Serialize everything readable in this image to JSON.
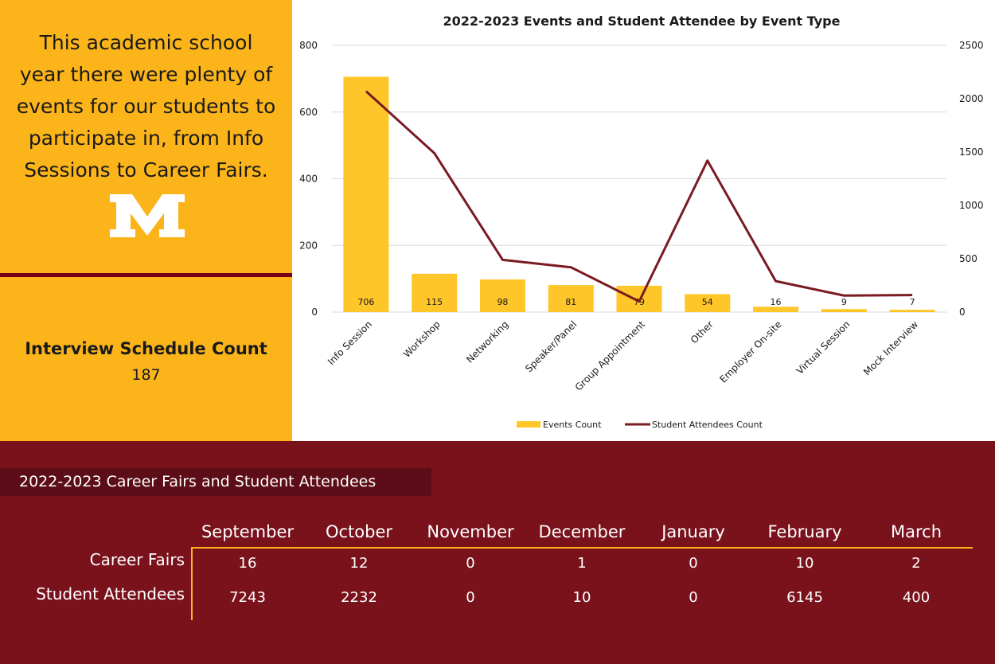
{
  "intro_text": [
    "This academic school",
    "year there were plenty of",
    "events for our students to",
    "participate in, from Info",
    "Sessions to Career Fairs."
  ],
  "logo_text": "M",
  "interview": {
    "title": "Interview Schedule Count",
    "value": "187"
  },
  "colors": {
    "gold": "#FBB51A",
    "maroon": "#7A0019",
    "bar": "#FFC629",
    "line": "#7A1A22",
    "bottom_bg": "#7A121C"
  },
  "chart_data": {
    "type": "bar",
    "title": "2022-2023 Events and Student Attendee by Event Type",
    "categories": [
      "Info Session",
      "Workshop",
      "Networking",
      "Speaker/Panel",
      "Group Appointment",
      "Other",
      "Employer On-site",
      "Virtual Session",
      "Mock Interview"
    ],
    "series": [
      {
        "name": "Events Count",
        "type": "bar",
        "axis": "left",
        "values": [
          706,
          115,
          98,
          81,
          79,
          54,
          16,
          9,
          7
        ]
      },
      {
        "name": "Student Attendees Count",
        "type": "line",
        "axis": "right",
        "values": [
          2070,
          1490,
          490,
          420,
          100,
          1420,
          290,
          155,
          160
        ]
      }
    ],
    "ylim_left": [
      0,
      800
    ],
    "yticks_left": [
      "0",
      "200",
      "400",
      "600",
      "800"
    ],
    "ylim_right": [
      0,
      2500
    ],
    "yticks_right": [
      "0",
      "500",
      "1000",
      "1500",
      "2000",
      "2500"
    ],
    "grid": true,
    "legend": "bottom"
  },
  "career_fairs": {
    "title": "2022-2023 Career Fairs and Student Attendees",
    "months": [
      "September",
      "October",
      "November",
      "December",
      "January",
      "February",
      "March"
    ],
    "rows": [
      {
        "label": "Career Fairs",
        "values": [
          "16",
          "12",
          "0",
          "1",
          "0",
          "10",
          "2"
        ]
      },
      {
        "label": "Student Attendees",
        "values": [
          "7243",
          "2232",
          "0",
          "10",
          "0",
          "6145",
          "400"
        ]
      }
    ]
  }
}
